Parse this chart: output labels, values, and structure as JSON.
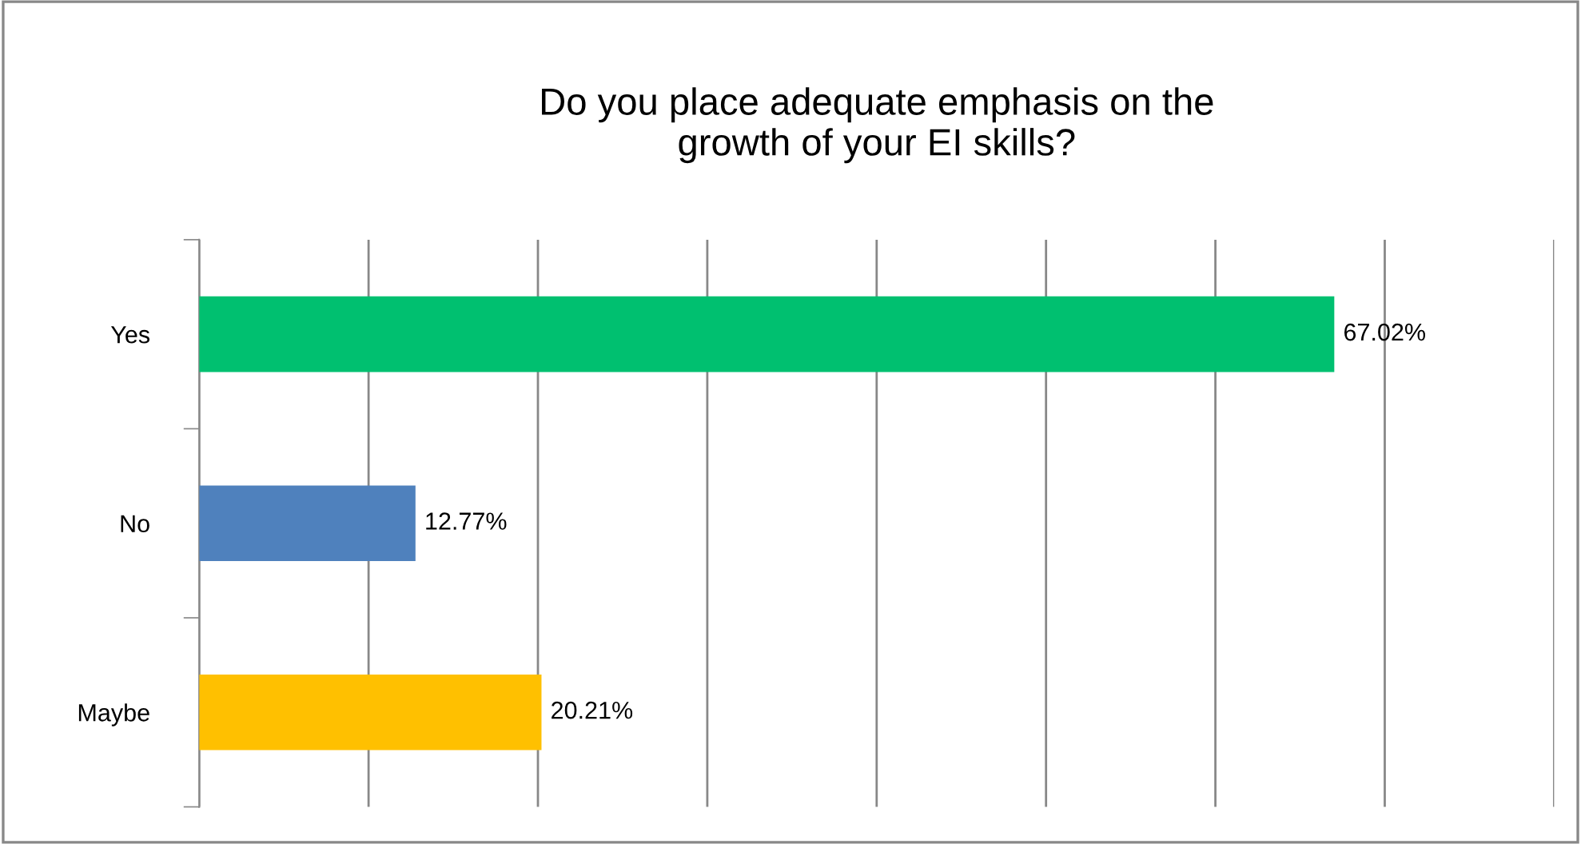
{
  "chart_data": {
    "type": "bar",
    "orientation": "horizontal",
    "title": "Do you place adequate emphasis on the\ngrowth of your EI skills?",
    "categories": [
      "Yes",
      "No",
      "Maybe"
    ],
    "values": [
      67.02,
      12.77,
      20.21
    ],
    "colors": [
      "#00c070",
      "#4f81bd",
      "#ffc000"
    ],
    "value_labels": [
      "67.02%",
      "12.77%",
      "20.21%"
    ],
    "xlim": [
      0,
      80
    ],
    "xticks": [
      {
        "value": 0,
        "label": null
      },
      {
        "value": 10,
        "label": null
      },
      {
        "value": 20,
        "label": null
      },
      {
        "value": 30,
        "label": null
      },
      {
        "value": 40,
        "label": null
      },
      {
        "value": 50,
        "label": null
      },
      {
        "value": 60,
        "label": null
      },
      {
        "value": 70,
        "label": null
      },
      {
        "value": 80,
        "label": null
      }
    ],
    "tick_labels": "y",
    "grid": "x",
    "legend": false
  }
}
